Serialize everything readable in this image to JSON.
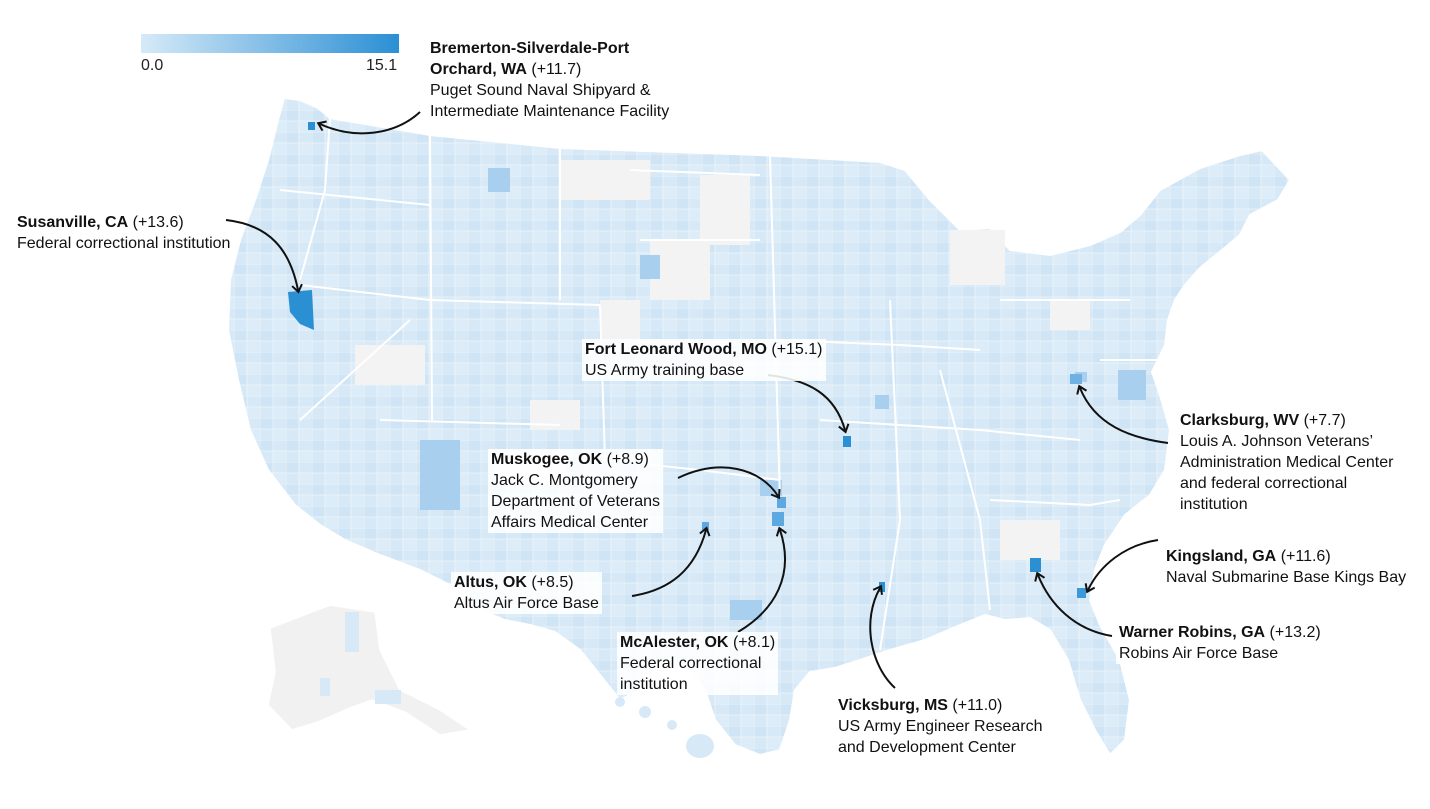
{
  "legend": {
    "min_label": "0.0",
    "max_label": "15.1",
    "color_low": "#d6eaf8",
    "color_high": "#2b8fd4"
  },
  "colors": {
    "land_base": "#f2f2f2",
    "county_light": "#d7e9f7",
    "county_mid": "#b9d8f1",
    "county_dark": "#8fc2ea",
    "highlight": "#2b8fd4",
    "state_border": "#ffffff",
    "arrow": "#111111"
  },
  "annotations": {
    "bremerton": {
      "place_line1": "Bremerton-Silverdale-Port",
      "place_line2": "Orchard, WA",
      "delta": "(+11.7)",
      "desc_line1": "Puget Sound Naval Shipyard &",
      "desc_line2": "Intermediate Maintenance Facility"
    },
    "susanville": {
      "place": "Susanville, CA",
      "delta": "(+13.6)",
      "desc_line1": "Federal correctional institution"
    },
    "fort_leonard_wood": {
      "place": "Fort Leonard Wood, MO",
      "delta": "(+15.1)",
      "desc_line1": "US Army training base"
    },
    "muskogee": {
      "place": "Muskogee, OK",
      "delta": "(+8.9)",
      "desc_line1": "Jack C. Montgomery",
      "desc_line2": "Department of Veterans",
      "desc_line3": "Affairs Medical Center"
    },
    "altus": {
      "place": "Altus, OK",
      "delta": "(+8.5)",
      "desc_line1": "Altus Air Force Base"
    },
    "mcalester": {
      "place": "McAlester, OK",
      "delta": "(+8.1)",
      "desc_line1": "Federal correctional",
      "desc_line2": "institution"
    },
    "vicksburg": {
      "place": "Vicksburg, MS",
      "delta": "(+11.0)",
      "desc_line1": "US Army Engineer Research",
      "desc_line2": "and Development Center"
    },
    "clarksburg": {
      "place": "Clarksburg, WV",
      "delta": "(+7.7)",
      "desc_line1": "Louis A. Johnson Veterans’",
      "desc_line2": "Administration Medical Center",
      "desc_line3": "and federal correctional",
      "desc_line4": "institution"
    },
    "kingsland": {
      "place": "Kingsland, GA",
      "delta": "(+11.6)",
      "desc_line1": "Naval Submarine Base Kings Bay"
    },
    "warner_robins": {
      "place": "Warner Robins, GA",
      "delta": "(+13.2)",
      "desc_line1": "Robins Air Force Base"
    }
  }
}
